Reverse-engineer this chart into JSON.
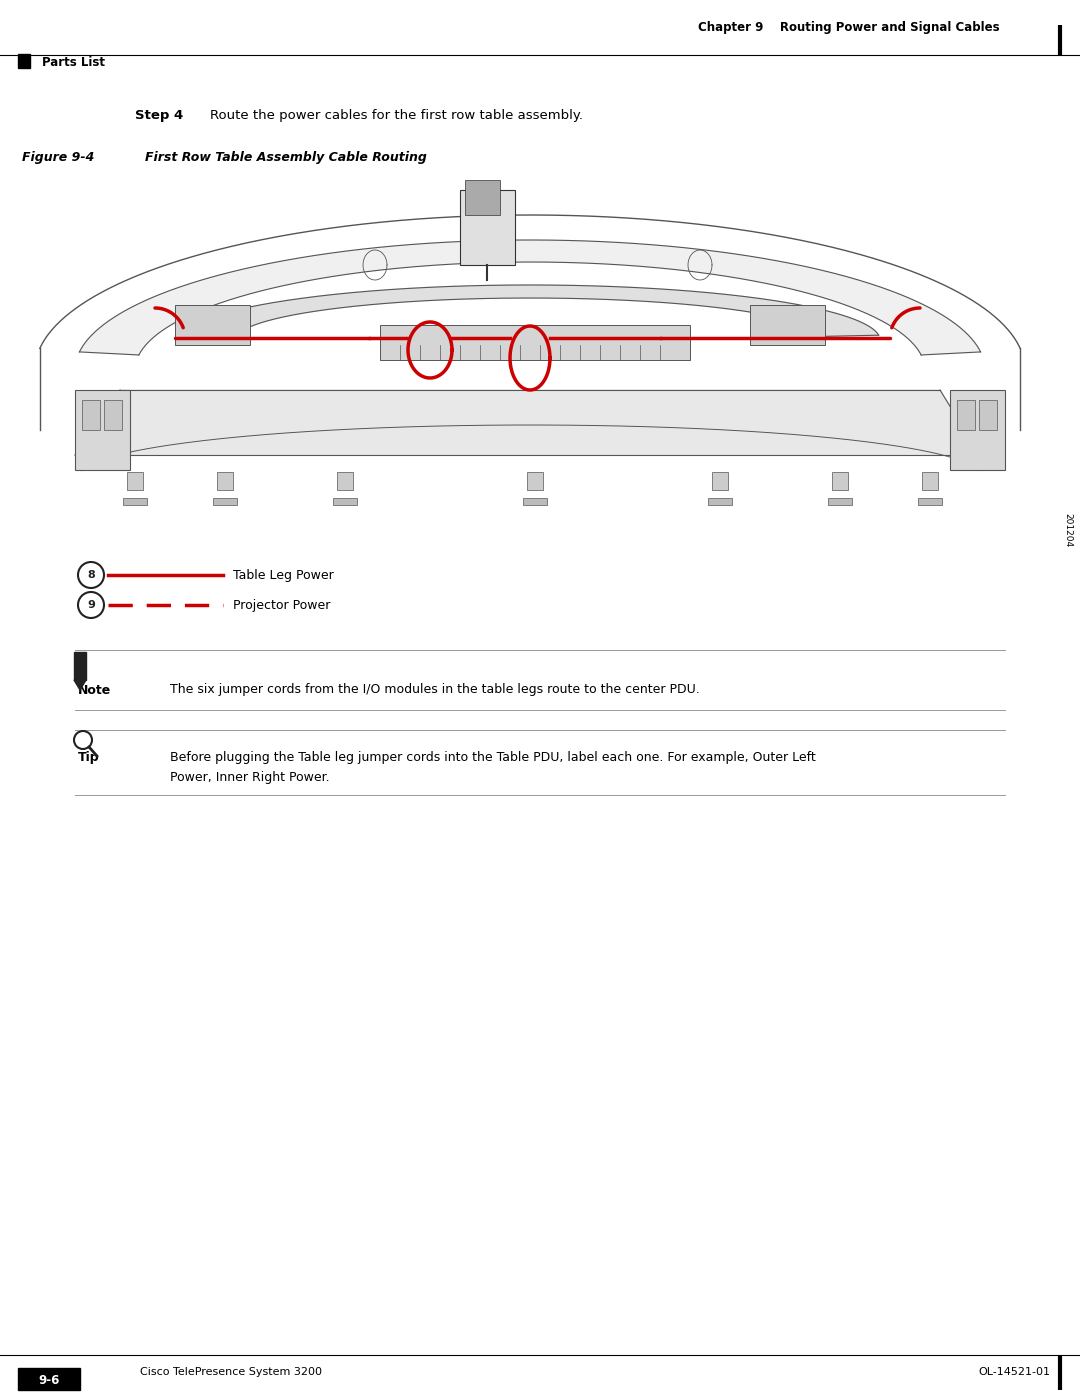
{
  "page_width": 10.8,
  "page_height": 13.97,
  "bg_color": "#ffffff",
  "text_color": "#000000",
  "header_text_right": "Chapter 9    Routing Power and Signal Cables",
  "header_left_text": "Parts List",
  "step_bold": "Step 4",
  "step_normal": "Route the power cables for the first row table assembly.",
  "figure_bold": "Figure 9-4",
  "figure_italic": "First Row Table Assembly Cable Routing",
  "legend_8_text": "Table Leg Power",
  "legend_9_text": "Projector Power",
  "note_text": "The six jumper cords from the I/O modules in the table legs route to the center PDU.",
  "tip_line1": "Before plugging the Table leg jumper cords into the Table PDU, label each one. For example, Outer Left",
  "tip_line2": "Power, Inner Right Power.",
  "footer_page": "9-6",
  "footer_center": "Cisco TelePresence System 3200",
  "footer_right": "OL-14521-01",
  "sidebar_text": "201204",
  "cable_color": "#cc0000",
  "table_line_color": "#555555",
  "legend_circle_color": "#222222"
}
